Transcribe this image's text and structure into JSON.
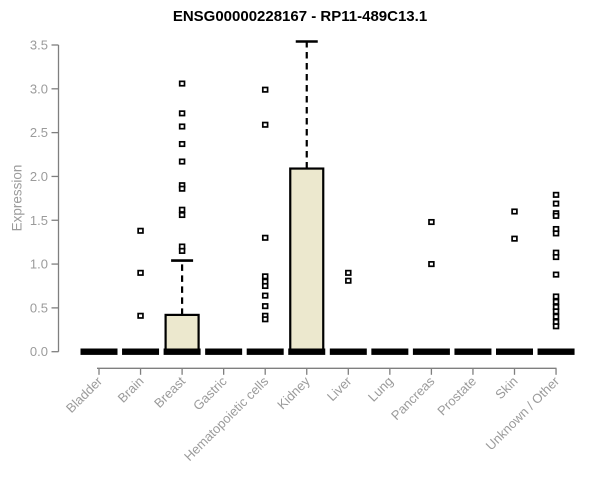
{
  "chart_data": {
    "type": "boxplot",
    "title": "ENSG00000228167 - RP11-489C13.1",
    "ylabel": "Expression",
    "xlabel": "",
    "ylim": [
      0,
      3.5
    ],
    "yticks": [
      0.0,
      0.5,
      1.0,
      1.5,
      2.0,
      2.5,
      3.0,
      3.5
    ],
    "grid": false,
    "legend_position": "none",
    "categories": [
      "Bladder",
      "Brain",
      "Breast",
      "Gastric",
      "Hematopoietic cells",
      "Kidney",
      "Liver",
      "Lung",
      "Pancreas",
      "Prostate",
      "Skin",
      "Unknown / Other"
    ],
    "boxes": [
      {
        "category": "Bladder",
        "median": 0,
        "q1": 0,
        "q3": 0,
        "whisker_low": 0,
        "whisker_high": 0,
        "outliers": []
      },
      {
        "category": "Brain",
        "median": 0,
        "q1": 0,
        "q3": 0,
        "whisker_low": 0,
        "whisker_high": 0,
        "outliers": [
          1.38,
          0.9,
          0.41
        ]
      },
      {
        "category": "Breast",
        "median": 0,
        "q1": 0,
        "q3": 0.42,
        "whisker_low": 0,
        "whisker_high": 1.04,
        "outliers": [
          3.06,
          2.72,
          2.57,
          2.37,
          2.17,
          1.9,
          1.86,
          1.62,
          1.56,
          1.2,
          1.15
        ]
      },
      {
        "category": "Gastric",
        "median": 0,
        "q1": 0,
        "q3": 0,
        "whisker_low": 0,
        "whisker_high": 0,
        "outliers": []
      },
      {
        "category": "Hematopoietic cells",
        "median": 0,
        "q1": 0,
        "q3": 0,
        "whisker_low": 0,
        "whisker_high": 0,
        "outliers": [
          2.99,
          2.59,
          1.3,
          0.86,
          0.8,
          0.75,
          0.64,
          0.52,
          0.41,
          0.37
        ]
      },
      {
        "category": "Kidney",
        "median": 0,
        "q1": 0,
        "q3": 2.09,
        "whisker_low": 0,
        "whisker_high": 3.54,
        "outliers": []
      },
      {
        "category": "Liver",
        "median": 0,
        "q1": 0,
        "q3": 0,
        "whisker_low": 0,
        "whisker_high": 0,
        "outliers": [
          0.9,
          0.81
        ]
      },
      {
        "category": "Lung",
        "median": 0,
        "q1": 0,
        "q3": 0,
        "whisker_low": 0,
        "whisker_high": 0,
        "outliers": []
      },
      {
        "category": "Pancreas",
        "median": 0,
        "q1": 0,
        "q3": 0,
        "whisker_low": 0,
        "whisker_high": 0,
        "outliers": [
          1.48,
          1.0
        ]
      },
      {
        "category": "Prostate",
        "median": 0,
        "q1": 0,
        "q3": 0,
        "whisker_low": 0,
        "whisker_high": 0,
        "outliers": []
      },
      {
        "category": "Skin",
        "median": 0,
        "q1": 0,
        "q3": 0,
        "whisker_low": 0,
        "whisker_high": 0,
        "outliers": [
          1.6,
          1.29
        ]
      },
      {
        "category": "Unknown / Other",
        "median": 0,
        "q1": 0,
        "q3": 0,
        "whisker_low": 0,
        "whisker_high": 0,
        "outliers": [
          1.79,
          1.69,
          1.58,
          1.55,
          1.4,
          1.35,
          1.13,
          1.08,
          0.88,
          0.63,
          0.57,
          0.51,
          0.46,
          0.4,
          0.34,
          0.29
        ]
      }
    ],
    "colors": {
      "box_fill": "#ECE8CE",
      "box_stroke": "#000000",
      "median": "#000000",
      "outlier_stroke": "#000000",
      "outlier_fill": "#ffffff",
      "axis": "#7f7f7f",
      "tick_label": "#9b9b9b",
      "title": "#000000",
      "background": "#ffffff"
    }
  }
}
